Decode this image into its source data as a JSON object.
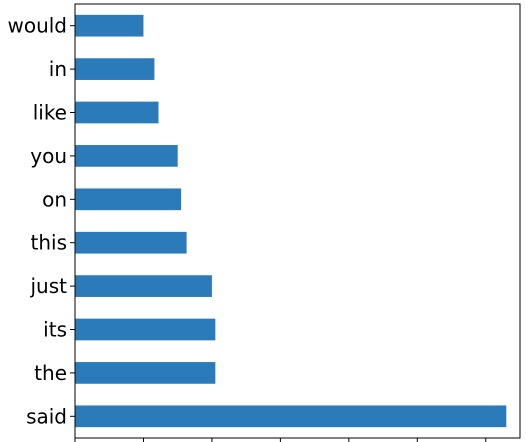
{
  "chart_data": {
    "type": "bar",
    "orientation": "horizontal",
    "categories": [
      "said",
      "the",
      "its",
      "just",
      "this",
      "on",
      "you",
      "like",
      "in",
      "would"
    ],
    "values": [
      6.3,
      2.05,
      2.05,
      2.0,
      1.63,
      1.55,
      1.5,
      1.22,
      1.16,
      1.0
    ],
    "xlim": [
      0,
      6.5
    ],
    "grid": false,
    "legend": "none",
    "bar_color": "#2b7bba",
    "title": "",
    "xlabel": "",
    "ylabel": ""
  }
}
